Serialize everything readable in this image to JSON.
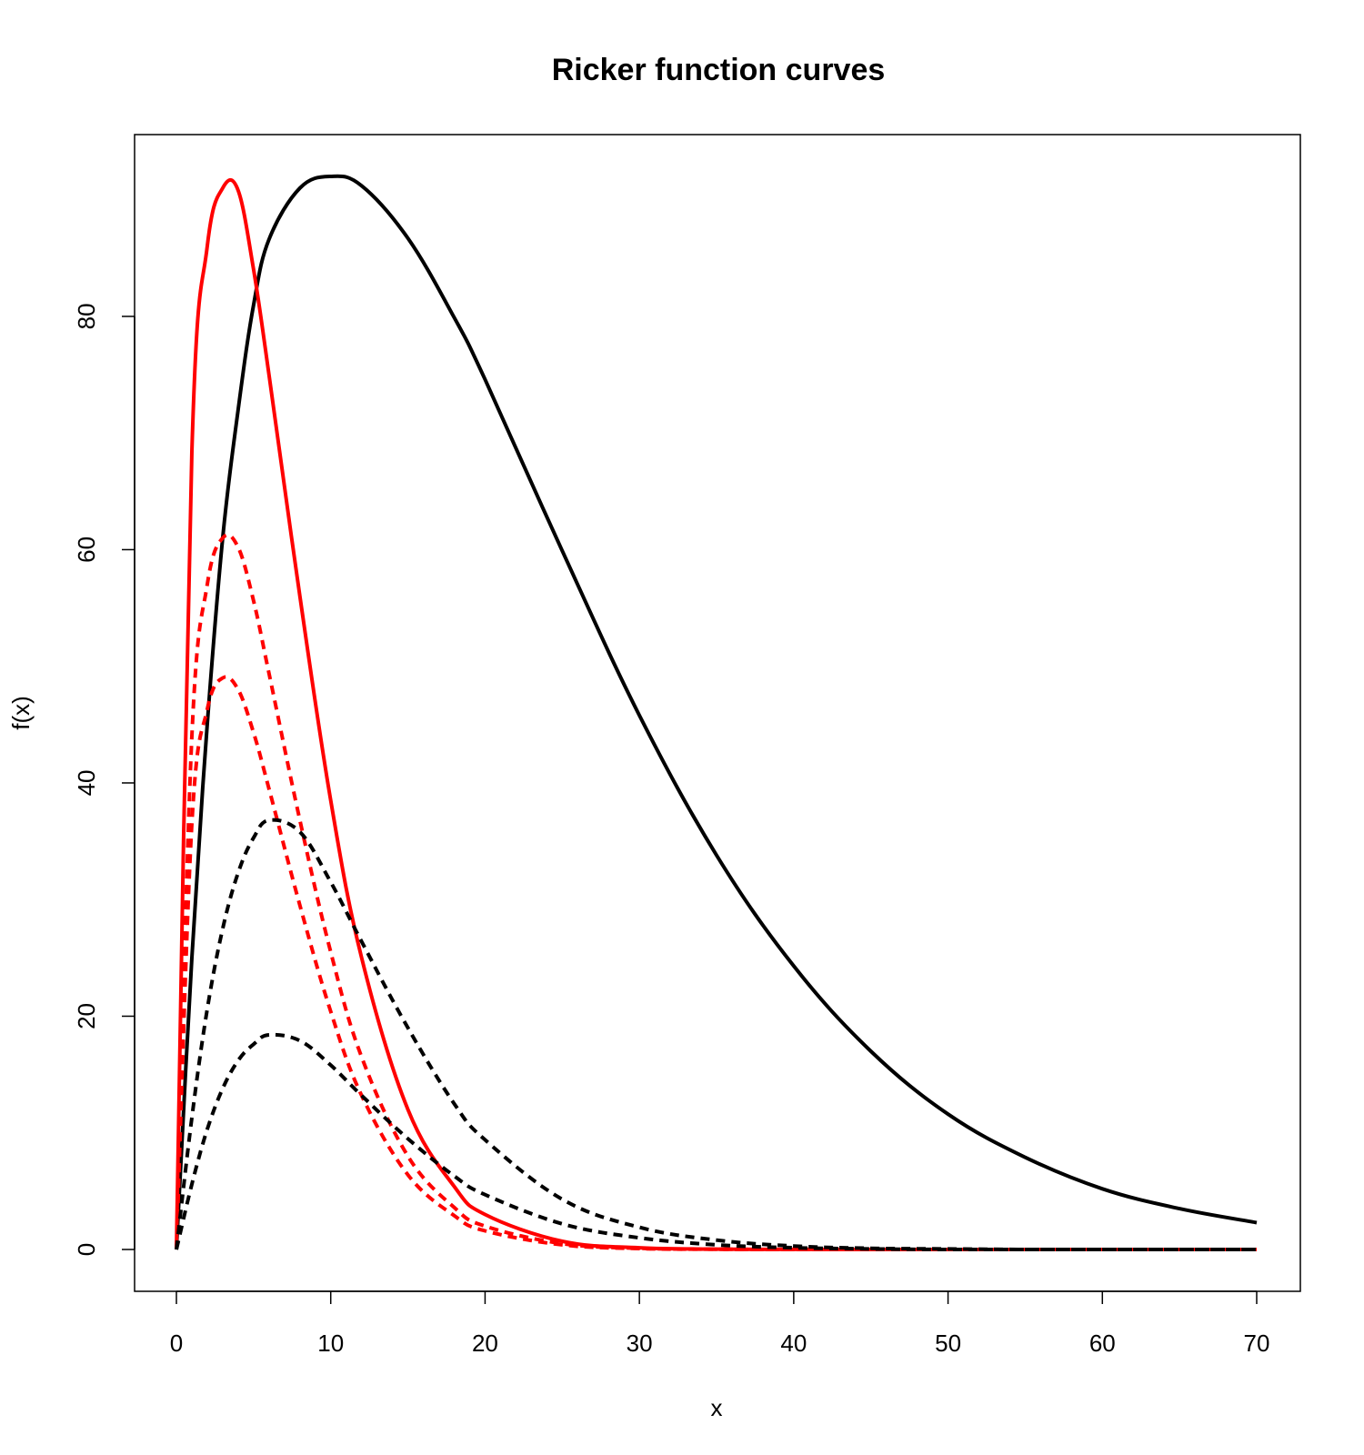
{
  "chart_data": {
    "type": "line",
    "title": "Ricker function curves",
    "xlabel": "x",
    "ylabel": "f(x)",
    "xlim": [
      0,
      70
    ],
    "ylim": [
      0,
      92
    ],
    "x_ticks": [
      "0",
      "10",
      "20",
      "30",
      "40",
      "50",
      "60",
      "70"
    ],
    "y_ticks": [
      "0",
      "20",
      "40",
      "60",
      "80"
    ],
    "grid": false,
    "legend": "none",
    "x": [
      0,
      1,
      2,
      3,
      4,
      5,
      6,
      8,
      10,
      12,
      15,
      18,
      20,
      25,
      30,
      35,
      40,
      45,
      50,
      55,
      60,
      65,
      70
    ],
    "series": [
      {
        "color": "#000000",
        "style": "solid",
        "values": [
          0,
          25.0,
          45.0,
          61.0,
          72.0,
          81.0,
          86.6,
          91.0,
          92.0,
          91.2,
          86.7,
          79.9,
          74.6,
          59.9,
          45.8,
          33.8,
          24.3,
          17.0,
          11.6,
          7.9,
          5.2,
          3.5,
          2.3
        ]
      },
      {
        "color": "#ff0000",
        "style": "solid",
        "values": [
          0,
          68.4,
          86.0,
          91.0,
          90.8,
          84.0,
          75.0,
          56.0,
          38.5,
          25.0,
          12.0,
          5.4,
          3.0,
          0.7,
          0.15,
          0.03,
          0.01,
          0,
          0,
          0,
          0,
          0,
          0
        ]
      },
      {
        "color": "#ff0000",
        "style": "dashed",
        "values": [
          0,
          44.0,
          57.0,
          61.0,
          60.2,
          55.6,
          49.4,
          36.8,
          25.5,
          16.5,
          8.0,
          3.6,
          2.0,
          0.5,
          0.1,
          0.02,
          0,
          0,
          0,
          0,
          0,
          0,
          0
        ]
      },
      {
        "color": "#ff0000",
        "style": "dashed",
        "values": [
          0,
          36.5,
          46.3,
          49.0,
          48.0,
          44.3,
          39.5,
          29.5,
          20.4,
          13.2,
          6.4,
          2.9,
          1.6,
          0.4,
          0.08,
          0.02,
          0,
          0,
          0,
          0,
          0,
          0,
          0
        ]
      },
      {
        "color": "#000000",
        "style": "dashed",
        "values": [
          0,
          11.3,
          20.6,
          27.5,
          32.3,
          35.3,
          36.8,
          35.8,
          31.5,
          26.4,
          19.0,
          12.5,
          9.4,
          4.3,
          1.9,
          0.8,
          0.3,
          0.1,
          0.05,
          0,
          0,
          0,
          0
        ]
      },
      {
        "color": "#000000",
        "style": "dashed",
        "values": [
          0,
          5.6,
          10.3,
          13.8,
          16.2,
          17.6,
          18.4,
          17.9,
          15.8,
          13.2,
          9.5,
          6.3,
          4.7,
          2.2,
          1.0,
          0.4,
          0.15,
          0.05,
          0,
          0,
          0,
          0,
          0
        ]
      }
    ]
  }
}
